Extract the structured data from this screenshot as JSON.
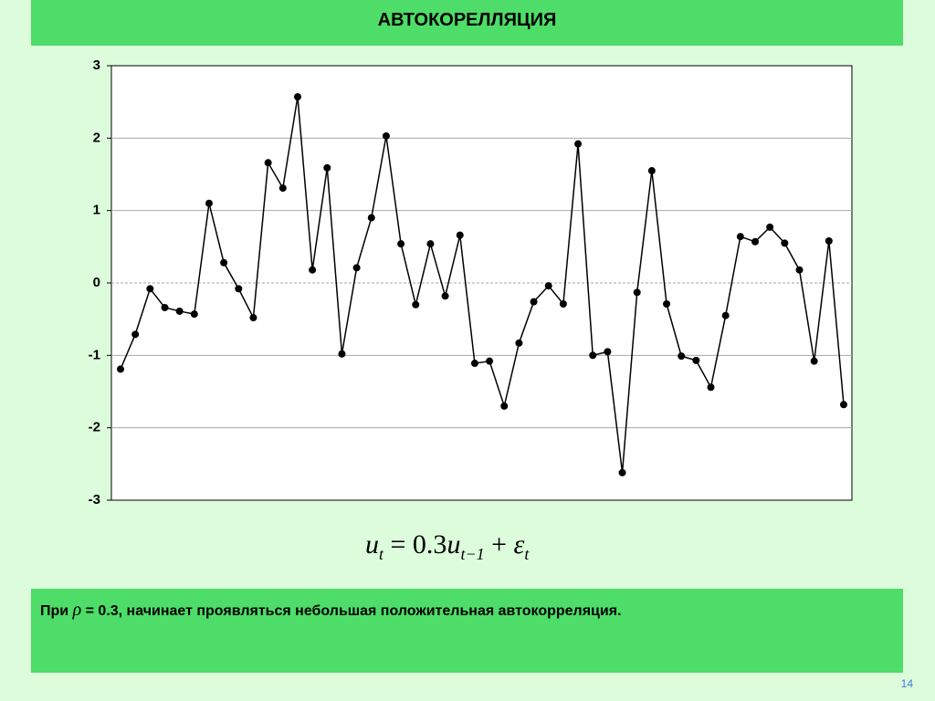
{
  "title": "АВТОКОРЕЛЛЯЦИЯ",
  "chart_data": {
    "type": "line",
    "color": "#000000",
    "values": [
      -1.19,
      -0.71,
      -0.08,
      -0.34,
      -0.39,
      -0.43,
      1.1,
      0.28,
      -0.08,
      -0.48,
      1.66,
      1.31,
      2.57,
      0.18,
      1.59,
      -0.98,
      0.21,
      0.9,
      2.03,
      0.54,
      -0.3,
      0.54,
      -0.18,
      0.66,
      -1.11,
      -1.08,
      -1.7,
      -0.83,
      -0.26,
      -0.04,
      -0.29,
      1.92,
      -1.0,
      -0.95,
      -2.62,
      -0.13,
      1.55,
      -0.29,
      -1.01,
      -1.07,
      -1.44,
      -0.45,
      0.64,
      0.57,
      0.77,
      0.55,
      0.18,
      -1.08,
      0.58,
      -1.68
    ],
    "ylim": [
      -3,
      3
    ],
    "yticks": [
      -3,
      -2,
      -1,
      0,
      1,
      2,
      3
    ],
    "grid": true
  },
  "formula": [
    "u",
    "t",
    "= 0.3",
    "u",
    "t−1",
    "+",
    "ε",
    "t"
  ],
  "note": [
    "При",
    "ρ",
    "= 0.3,  начинает проявляться небольшая положительная автокорреляция."
  ],
  "page_number": "14"
}
